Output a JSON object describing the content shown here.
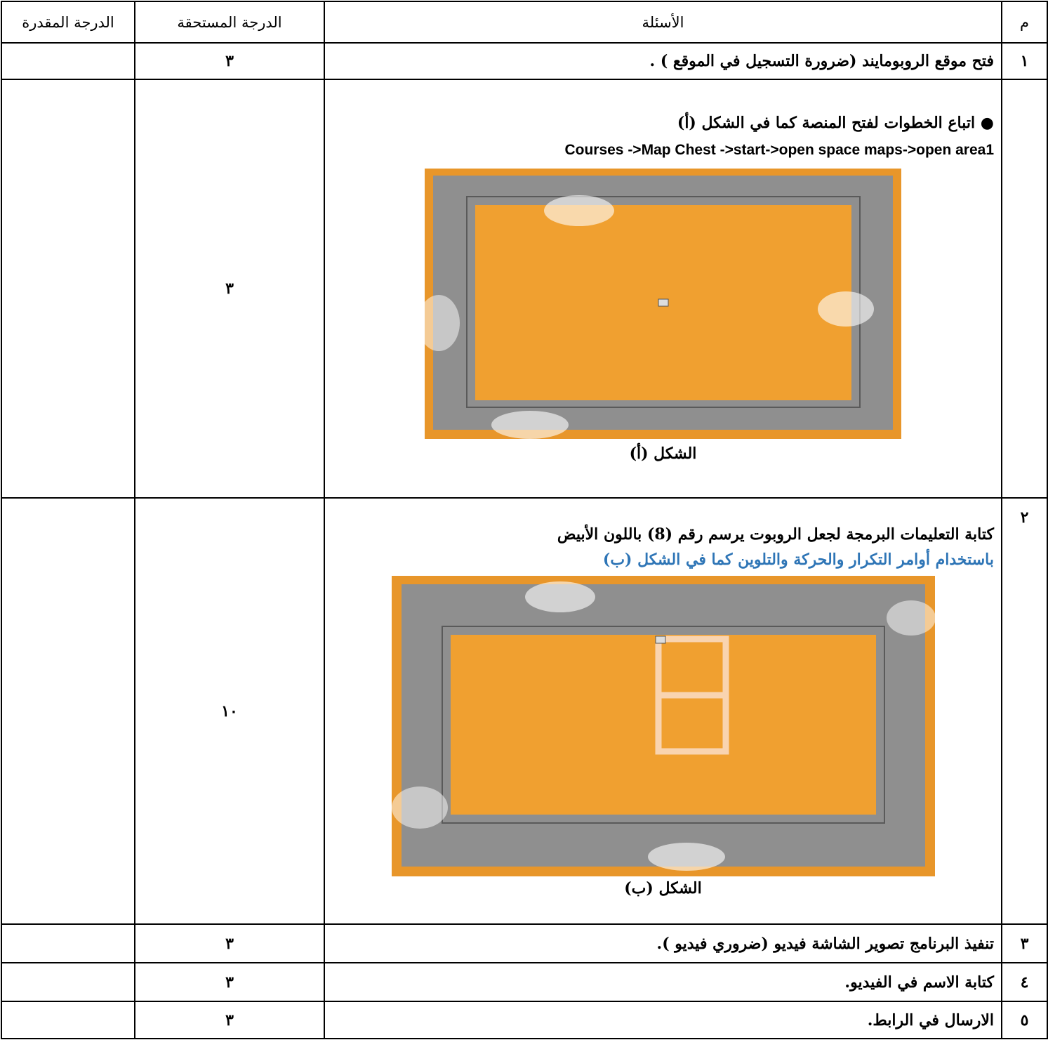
{
  "table": {
    "header": [
      "م",
      "الأسئلة",
      "الدرجة المستحقة",
      "الدرجة المقدرة"
    ],
    "rows": [
      {
        "number": "١",
        "question": "فتح موقع الروبومايند (ضرورة التسجيل في الموقع ) .",
        "points": "٣"
      },
      {
        "bullet": "اتباع الخطوات لفتح المنصة كما في الشكل (أ)",
        "path": "Courses ->Map Chest ->start->open space maps->open area1",
        "caption": "الشكل (أ)",
        "points": "٣"
      },
      {
        "number": "٢",
        "question": "كتابة التعليمات البرمجة  لجعل الروبوت يرسم رقم (8) باللون الأبيض",
        "note": "باستخدام أوامر التكرار والحركة والتلوين كما في الشكل (ب)",
        "caption": "الشكل (ب)",
        "points": "١٠"
      },
      {
        "number": "٣",
        "question": "تنفيذ البرنامج تصوير الشاشة فيديو (ضروري فيديو ).",
        "points": "٣"
      },
      {
        "number": "٤",
        "question": "كتابة الاسم في الفيديو.",
        "points": "٣"
      },
      {
        "number": "٥",
        "question": "الارسال في الرابط.",
        "points": "٣"
      }
    ]
  }
}
